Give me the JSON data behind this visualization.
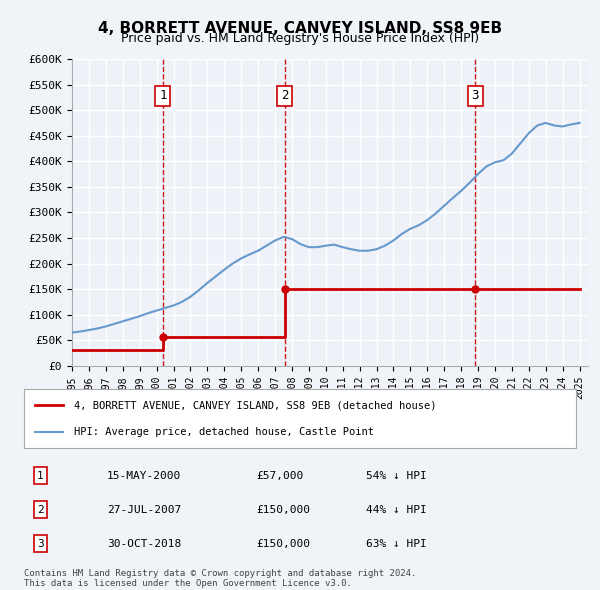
{
  "title": "4, BORRETT AVENUE, CANVEY ISLAND, SS8 9EB",
  "subtitle": "Price paid vs. HM Land Registry's House Price Index (HPI)",
  "ylabel": "",
  "ylim": [
    0,
    600000
  ],
  "yticks": [
    0,
    50000,
    100000,
    150000,
    200000,
    250000,
    300000,
    350000,
    400000,
    450000,
    500000,
    550000,
    600000
  ],
  "ytick_labels": [
    "£0",
    "£50K",
    "£100K",
    "£150K",
    "£200K",
    "£250K",
    "£300K",
    "£350K",
    "£400K",
    "£450K",
    "£500K",
    "£550K",
    "£600K"
  ],
  "bg_color": "#e8f0f8",
  "plot_bg_color": "#eef2f8",
  "grid_color": "#ffffff",
  "red_color": "#cc0000",
  "blue_color": "#6699cc",
  "dashed_color": "#cc0000",
  "transaction_markers": [
    {
      "label": "1",
      "date": 2000.37,
      "price": 57000,
      "hpi_price": 57000
    },
    {
      "label": "2",
      "date": 2007.57,
      "price": 150000,
      "hpi_price": 150000
    },
    {
      "label": "3",
      "date": 2018.83,
      "price": 150000,
      "hpi_price": 150000
    }
  ],
  "transactions_table": [
    {
      "num": "1",
      "date": "15-MAY-2000",
      "price": "£57,000",
      "hpi": "54% ↓ HPI"
    },
    {
      "num": "2",
      "date": "27-JUL-2007",
      "price": "£150,000",
      "hpi": "44% ↓ HPI"
    },
    {
      "num": "3",
      "date": "30-OCT-2018",
      "price": "£150,000",
      "hpi": "63% ↓ HPI"
    }
  ],
  "legend_line1": "4, BORRETT AVENUE, CANVEY ISLAND, SS8 9EB (detached house)",
  "legend_line2": "HPI: Average price, detached house, Castle Point",
  "footer1": "Contains HM Land Registry data © Crown copyright and database right 2024.",
  "footer2": "This data is licensed under the Open Government Licence v3.0.",
  "hpi_x": [
    1995,
    1995.5,
    1996,
    1996.5,
    1997,
    1997.5,
    1998,
    1998.5,
    1999,
    1999.5,
    2000,
    2000.5,
    2001,
    2001.5,
    2002,
    2002.5,
    2003,
    2003.5,
    2004,
    2004.5,
    2005,
    2005.5,
    2006,
    2006.5,
    2007,
    2007.5,
    2008,
    2008.5,
    2009,
    2009.5,
    2010,
    2010.5,
    2011,
    2011.5,
    2012,
    2012.5,
    2013,
    2013.5,
    2014,
    2014.5,
    2015,
    2015.5,
    2016,
    2016.5,
    2017,
    2017.5,
    2018,
    2018.5,
    2019,
    2019.5,
    2020,
    2020.5,
    2021,
    2021.5,
    2022,
    2022.5,
    2023,
    2023.5,
    2024,
    2024.5,
    2025
  ],
  "hpi_y": [
    65000,
    67000,
    70000,
    73000,
    77000,
    82000,
    87000,
    92000,
    97000,
    103000,
    108000,
    113000,
    118000,
    125000,
    135000,
    148000,
    162000,
    175000,
    188000,
    200000,
    210000,
    218000,
    225000,
    235000,
    245000,
    252000,
    248000,
    238000,
    232000,
    232000,
    235000,
    237000,
    232000,
    228000,
    225000,
    225000,
    228000,
    235000,
    245000,
    258000,
    268000,
    275000,
    285000,
    298000,
    313000,
    328000,
    342000,
    358000,
    375000,
    390000,
    398000,
    402000,
    415000,
    435000,
    455000,
    470000,
    475000,
    470000,
    468000,
    472000,
    475000
  ],
  "prop_x": [
    1995.0,
    2000.37,
    2000.37,
    2007.57,
    2007.57,
    2018.83,
    2018.83,
    2025.0
  ],
  "prop_y": [
    30000,
    30000,
    57000,
    57000,
    150000,
    150000,
    150000,
    150000
  ],
  "xlim": [
    1995,
    2025.5
  ],
  "xticks": [
    1995,
    1996,
    1997,
    1998,
    1999,
    2000,
    2001,
    2002,
    2003,
    2004,
    2005,
    2006,
    2007,
    2008,
    2009,
    2010,
    2011,
    2012,
    2013,
    2014,
    2015,
    2016,
    2017,
    2018,
    2019,
    2020,
    2021,
    2022,
    2023,
    2024,
    2025
  ]
}
